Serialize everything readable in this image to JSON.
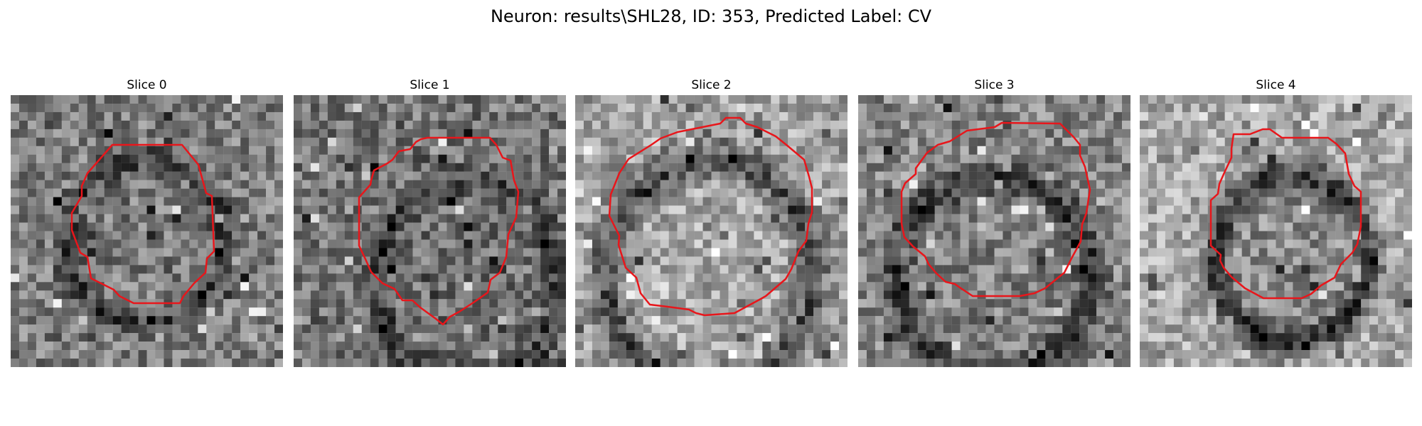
{
  "figure": {
    "title": "Neuron: results\\SHL28, ID: 353, Predicted Label: CV"
  },
  "slices": [
    {
      "title": "Slice 0"
    },
    {
      "title": "Slice 1"
    },
    {
      "title": "Slice 2"
    },
    {
      "title": "Slice 3"
    },
    {
      "title": "Slice 4"
    }
  ],
  "colors": {
    "contour": "#e8161b",
    "background": "#ffffff"
  }
}
